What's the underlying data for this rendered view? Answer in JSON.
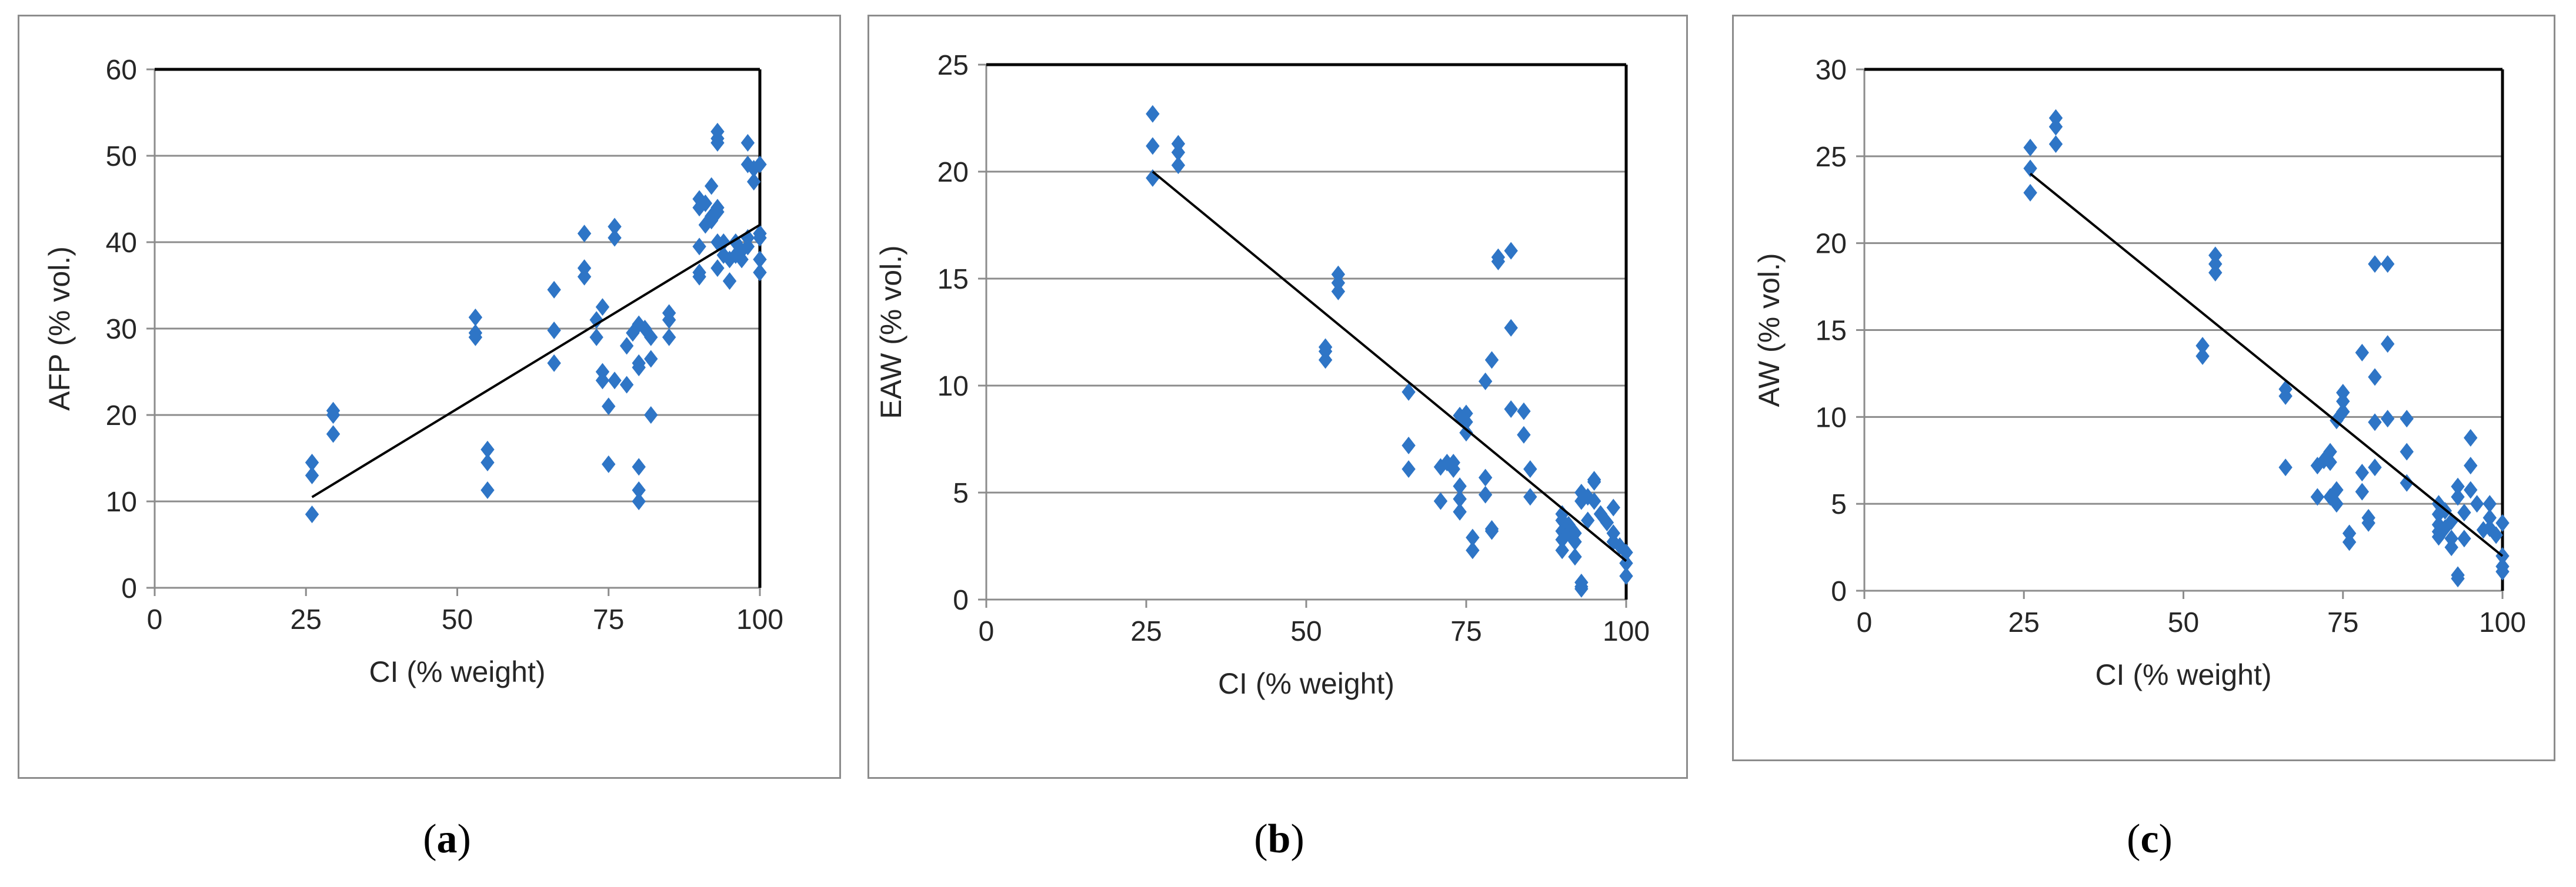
{
  "colors": {
    "marker": "#2E75C6",
    "grid": "#8c8c8c",
    "frame": "#000000",
    "trend": "#000000"
  },
  "chart_data": [
    {
      "type": "scatter",
      "caption": {
        "open": "(",
        "letter": "a",
        "close": ")"
      },
      "xlabel": "CI (% weight)",
      "ylabel": "AFP (% vol.)",
      "xlim": [
        0,
        100
      ],
      "ylim": [
        0,
        60
      ],
      "xticks": [
        0,
        25,
        50,
        75,
        100
      ],
      "yticks": [
        0,
        10,
        20,
        30,
        40,
        50,
        60
      ],
      "trendline": {
        "x": [
          26,
          100
        ],
        "y": [
          10.5,
          42
        ]
      },
      "points": [
        [
          26,
          8.5
        ],
        [
          26,
          13
        ],
        [
          26,
          14.5
        ],
        [
          29.5,
          17.8
        ],
        [
          29.5,
          20
        ],
        [
          29.5,
          20.5
        ],
        [
          53,
          29
        ],
        [
          53,
          31.3
        ],
        [
          53,
          29.5
        ],
        [
          55,
          11.3
        ],
        [
          55,
          14.5
        ],
        [
          55,
          16
        ],
        [
          66,
          26
        ],
        [
          66,
          29.8
        ],
        [
          66,
          34.5
        ],
        [
          71,
          36
        ],
        [
          71,
          37
        ],
        [
          71,
          41
        ],
        [
          73,
          29
        ],
        [
          73,
          31
        ],
        [
          74,
          25
        ],
        [
          74,
          24
        ],
        [
          74,
          32.5
        ],
        [
          75,
          21
        ],
        [
          75,
          14.3
        ],
        [
          76,
          24
        ],
        [
          76,
          40.5
        ],
        [
          76,
          41.8
        ],
        [
          78,
          23.5
        ],
        [
          78,
          28
        ],
        [
          79,
          29.5
        ],
        [
          80,
          30.5
        ],
        [
          80,
          14
        ],
        [
          80,
          11.3
        ],
        [
          80,
          10
        ],
        [
          80,
          26
        ],
        [
          80,
          25.5
        ],
        [
          81,
          30
        ],
        [
          82,
          26.5
        ],
        [
          82,
          20
        ],
        [
          82,
          29
        ],
        [
          85,
          29
        ],
        [
          85,
          31
        ],
        [
          85,
          31.8
        ],
        [
          90,
          45
        ],
        [
          90,
          44
        ],
        [
          90,
          39.5
        ],
        [
          90,
          36.5
        ],
        [
          90,
          36
        ],
        [
          91,
          42
        ],
        [
          91,
          44.5
        ],
        [
          92,
          46.5
        ],
        [
          92,
          43
        ],
        [
          92,
          42.5
        ],
        [
          93,
          52.8
        ],
        [
          93,
          52
        ],
        [
          93,
          51.5
        ],
        [
          93,
          44
        ],
        [
          93,
          43.5
        ],
        [
          93,
          40
        ],
        [
          93,
          37
        ],
        [
          94,
          40
        ],
        [
          94,
          38.5
        ],
        [
          95,
          35.5
        ],
        [
          95,
          38
        ],
        [
          96,
          38.5
        ],
        [
          96,
          40
        ],
        [
          97,
          38
        ],
        [
          97,
          39
        ],
        [
          98,
          51.5
        ],
        [
          98,
          49
        ],
        [
          98,
          39.5
        ],
        [
          98,
          40.5
        ],
        [
          99,
          48.5
        ],
        [
          99,
          47
        ],
        [
          100,
          49
        ],
        [
          100,
          40.5
        ],
        [
          100,
          38
        ],
        [
          100,
          36.5
        ],
        [
          100,
          41
        ]
      ]
    },
    {
      "type": "scatter",
      "caption": {
        "open": "(",
        "letter": "b",
        "close": ")"
      },
      "xlabel": "CI (% weight)",
      "ylabel": "EAW (% vol.)",
      "xlim": [
        0,
        100
      ],
      "ylim": [
        0,
        25
      ],
      "xticks": [
        0,
        25,
        50,
        75,
        100
      ],
      "yticks": [
        0,
        5,
        10,
        15,
        20,
        25
      ],
      "trendline": {
        "x": [
          26,
          100
        ],
        "y": [
          20,
          1.8
        ]
      },
      "points": [
        [
          26,
          22.7
        ],
        [
          26,
          21.2
        ],
        [
          26,
          19.7
        ],
        [
          30,
          21.3
        ],
        [
          30,
          20.9
        ],
        [
          30,
          20.3
        ],
        [
          53,
          11.8
        ],
        [
          53,
          11.6
        ],
        [
          53,
          11.2
        ],
        [
          55,
          15.2
        ],
        [
          55,
          14.8
        ],
        [
          55,
          14.4
        ],
        [
          66,
          9.7
        ],
        [
          66,
          7.2
        ],
        [
          66,
          6.1
        ],
        [
          71,
          6.2
        ],
        [
          71,
          4.6
        ],
        [
          72,
          6.4
        ],
        [
          73,
          6.4
        ],
        [
          73,
          6.1
        ],
        [
          74,
          4.7
        ],
        [
          74,
          4.1
        ],
        [
          74,
          5.3
        ],
        [
          74,
          8.6
        ],
        [
          75,
          8.7
        ],
        [
          75,
          8.3
        ],
        [
          75,
          7.8
        ],
        [
          76,
          2.9
        ],
        [
          76,
          2.3
        ],
        [
          78,
          10.2
        ],
        [
          78,
          5.7
        ],
        [
          78,
          4.9
        ],
        [
          79,
          3.3
        ],
        [
          79,
          3.2
        ],
        [
          79,
          11.2
        ],
        [
          80,
          16
        ],
        [
          80,
          15.8
        ],
        [
          82,
          16.3
        ],
        [
          82,
          12.7
        ],
        [
          82,
          8.9
        ],
        [
          84,
          8.8
        ],
        [
          84,
          7.7
        ],
        [
          85,
          6.1
        ],
        [
          85,
          4.8
        ],
        [
          90,
          4
        ],
        [
          90,
          3.7
        ],
        [
          90,
          3.2
        ],
        [
          90,
          2.8
        ],
        [
          90,
          2.3
        ],
        [
          91,
          3.5
        ],
        [
          91,
          3.1
        ],
        [
          92,
          2
        ],
        [
          92,
          2.7
        ],
        [
          92,
          3.1
        ],
        [
          93,
          0.6
        ],
        [
          93,
          0.5
        ],
        [
          93,
          0.8
        ],
        [
          93,
          4.6
        ],
        [
          93,
          5
        ],
        [
          94,
          3.7
        ],
        [
          94,
          4.8
        ],
        [
          95,
          5.5
        ],
        [
          95,
          5.6
        ],
        [
          95,
          4.6
        ],
        [
          96,
          4
        ],
        [
          97,
          3.6
        ],
        [
          98,
          4.3
        ],
        [
          98,
          3.1
        ],
        [
          98,
          2.7
        ],
        [
          99,
          2.5
        ],
        [
          100,
          1.7
        ],
        [
          100,
          1.1
        ],
        [
          100,
          2.2
        ]
      ]
    },
    {
      "type": "scatter",
      "caption": {
        "open": "(",
        "letter": "c",
        "close": ")"
      },
      "xlabel": "CI (% weight)",
      "ylabel": "AW (% vol.)",
      "xlim": [
        0,
        100
      ],
      "ylim": [
        0,
        30
      ],
      "xticks": [
        0,
        25,
        50,
        75,
        100
      ],
      "yticks": [
        0,
        5,
        10,
        15,
        20,
        25,
        30
      ],
      "trendline": {
        "x": [
          26,
          100
        ],
        "y": [
          24,
          2
        ]
      },
      "points": [
        [
          26,
          25.5
        ],
        [
          26,
          24.3
        ],
        [
          26,
          22.9
        ],
        [
          30,
          27.2
        ],
        [
          30,
          26.7
        ],
        [
          30,
          25.7
        ],
        [
          53,
          14.1
        ],
        [
          53,
          13.5
        ],
        [
          55,
          19.3
        ],
        [
          55,
          18.8
        ],
        [
          55,
          18.3
        ],
        [
          66,
          11.6
        ],
        [
          66,
          11.2
        ],
        [
          66,
          7.1
        ],
        [
          71,
          7.2
        ],
        [
          71,
          5.4
        ],
        [
          72,
          7.5
        ],
        [
          73,
          8
        ],
        [
          73,
          7.4
        ],
        [
          73,
          5.4
        ],
        [
          74,
          5
        ],
        [
          74,
          5.8
        ],
        [
          74,
          9.8
        ],
        [
          75,
          11.4
        ],
        [
          75,
          10.9
        ],
        [
          75,
          10.3
        ],
        [
          76,
          3.3
        ],
        [
          76,
          2.8
        ],
        [
          78,
          13.7
        ],
        [
          78,
          6.8
        ],
        [
          78,
          5.7
        ],
        [
          79,
          4.2
        ],
        [
          79,
          3.9
        ],
        [
          80,
          18.8
        ],
        [
          80,
          12.3
        ],
        [
          80,
          9.7
        ],
        [
          80,
          7.1
        ],
        [
          82,
          18.8
        ],
        [
          82,
          14.2
        ],
        [
          82,
          9.9
        ],
        [
          85,
          9.9
        ],
        [
          85,
          8
        ],
        [
          85,
          6.2
        ],
        [
          90,
          5
        ],
        [
          90,
          4.4
        ],
        [
          90,
          3.8
        ],
        [
          90,
          3.4
        ],
        [
          90,
          3.1
        ],
        [
          91,
          4.6
        ],
        [
          91,
          3.6
        ],
        [
          92,
          3
        ],
        [
          92,
          2.5
        ],
        [
          92,
          4
        ],
        [
          93,
          0.9
        ],
        [
          93,
          0.7
        ],
        [
          93,
          6
        ],
        [
          93,
          5.4
        ],
        [
          94,
          4.5
        ],
        [
          94,
          3
        ],
        [
          95,
          8.8
        ],
        [
          95,
          7.2
        ],
        [
          95,
          5.8
        ],
        [
          96,
          5
        ],
        [
          97,
          3.5
        ],
        [
          98,
          5
        ],
        [
          98,
          4.2
        ],
        [
          98,
          3.6
        ],
        [
          99,
          3.2
        ],
        [
          100,
          2
        ],
        [
          100,
          1.4
        ],
        [
          100,
          1.1
        ],
        [
          100,
          3.9
        ]
      ]
    }
  ]
}
